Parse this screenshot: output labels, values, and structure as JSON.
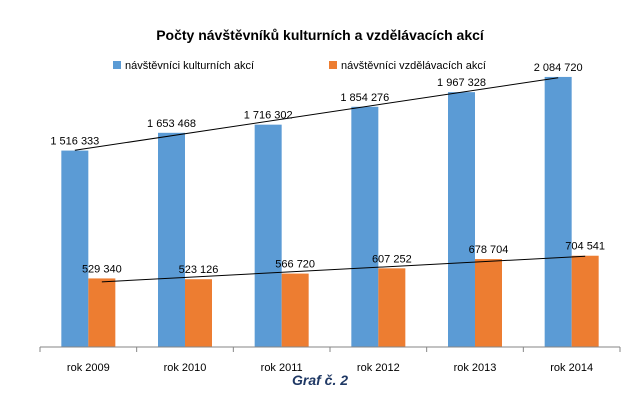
{
  "chart_data": {
    "type": "bar",
    "title": "Počty návštěvníků kulturních a vzdělávacích akcí",
    "categories": [
      "rok 2009",
      "rok 2010",
      "rok 2011",
      "rok 2012",
      "rok 2013",
      "rok 2014"
    ],
    "series": [
      {
        "name": "návštěvníci kulturních akcí",
        "values": [
          1516333,
          1653468,
          1716302,
          1854276,
          1967328,
          2084720
        ],
        "labels": [
          "1 516 333",
          "1 653 468",
          "1 716 302",
          "1 854 276",
          "1 967 328",
          "2 084 720"
        ],
        "color": "#5b9bd5"
      },
      {
        "name": "návštěvníci vzdělávacích akcí",
        "values": [
          529340,
          523126,
          566720,
          607252,
          678704,
          704541
        ],
        "labels": [
          "529 340",
          "523 126",
          "566 720",
          "607 252",
          "678 704",
          "704 541"
        ],
        "color": "#ed7d31"
      }
    ],
    "trendlines": "linear",
    "legend": "top",
    "grid": false
  },
  "caption": "Graf č. 2"
}
